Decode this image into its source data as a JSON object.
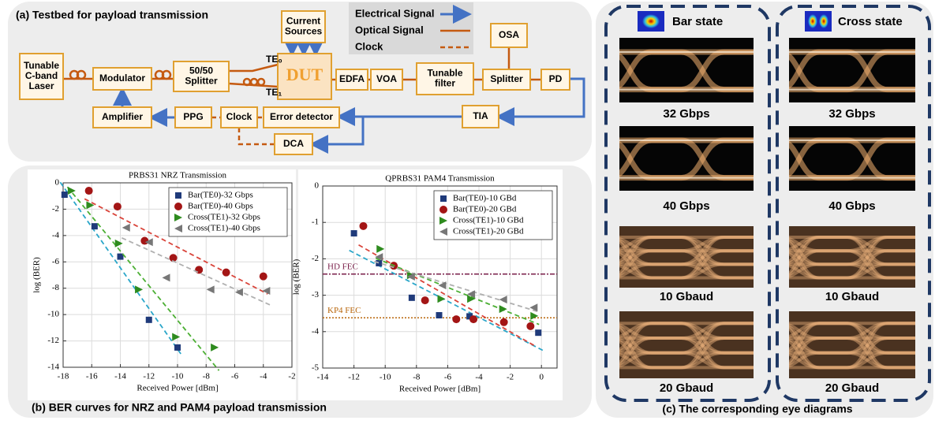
{
  "panel_a": {
    "title": "(a) Testbed for payload transmission",
    "legend": [
      "Electrical Signal",
      "Optical Signal",
      "Clock"
    ],
    "ports": [
      "TE₀",
      "TE₁"
    ],
    "nodes": [
      {
        "label": [
          "Tunable",
          "C-band",
          "Laser"
        ]
      },
      {
        "label": [
          "Modulator"
        ]
      },
      {
        "label": [
          "50/50",
          "Splitter"
        ]
      },
      {
        "label": [
          "Current",
          "Sources"
        ]
      },
      {
        "label": [
          "DUT"
        ]
      },
      {
        "label": [
          "EDFA"
        ]
      },
      {
        "label": [
          "VOA"
        ]
      },
      {
        "label": [
          "Tunable",
          "filter"
        ]
      },
      {
        "label": [
          "Splitter"
        ]
      },
      {
        "label": [
          "OSA"
        ]
      },
      {
        "label": [
          "PD"
        ]
      },
      {
        "label": [
          "TIA"
        ]
      },
      {
        "label": [
          "Error detector"
        ]
      },
      {
        "label": [
          "Clock"
        ]
      },
      {
        "label": [
          "PPG"
        ]
      },
      {
        "label": [
          "Amplifier"
        ]
      },
      {
        "label": [
          "DCA"
        ]
      }
    ]
  },
  "panel_b": {
    "caption": "(b) BER curves for NRZ and PAM4 payload transmission"
  },
  "chart_data": [
    {
      "type": "scatter",
      "title": "PRBS31 NRZ Transmission",
      "x_label": "Received Power [dBm]",
      "y_label": "log (BER)",
      "xlim": [
        -18,
        -2
      ],
      "ylim": [
        -14,
        0
      ],
      "xticks": [
        -18,
        -16,
        -14,
        -12,
        -10,
        -8,
        -6,
        -4,
        -2
      ],
      "yticks": [
        -14,
        -12,
        -10,
        -8,
        -6,
        -4,
        -2,
        0
      ],
      "grid": true,
      "legend": "upper right",
      "trendlines": true,
      "series": [
        {
          "name": "Bar(TE0)-32 Gbps",
          "color": "#1f3a7a",
          "fit_color": "#2aa6c9",
          "marker": "square",
          "x": [
            -17.9,
            -15.8,
            -14,
            -12,
            -10
          ],
          "values": [
            -0.9,
            -3.3,
            -5.6,
            -10.4,
            -12.5
          ]
        },
        {
          "name": "Bar(TE0)-40 Gbps",
          "color": "#a31515",
          "fit_color": "#d9443a",
          "marker": "circle",
          "x": [
            -16.2,
            -14.2,
            -12.3,
            -10.3,
            -8.5,
            -6.6,
            -4
          ],
          "values": [
            -0.6,
            -1.8,
            -4.4,
            -5.7,
            -6.6,
            -6.8,
            -7.1
          ]
        },
        {
          "name": "Cross(TE1)-32 Gbps",
          "color": "#2e8b1e",
          "fit_color": "#4caf34",
          "marker": "triangle-right",
          "x": [
            -17.4,
            -16.1,
            -14.1,
            -12.7,
            -10.1,
            -7.4
          ],
          "values": [
            -0.6,
            -1.7,
            -4.6,
            -8.1,
            -11.7,
            -12.5
          ]
        },
        {
          "name": "Cross(TE1)-40 Gbps",
          "color": "#777777",
          "fit_color": "#b0b0b0",
          "marker": "triangle-left",
          "x": [
            -13.6,
            -12,
            -10.8,
            -7.7,
            -5.7,
            -3.8
          ],
          "values": [
            -3.4,
            -4.5,
            -7.2,
            -8.1,
            -8.3,
            -8.2
          ]
        }
      ]
    },
    {
      "type": "scatter",
      "title": "QPRBS31 PAM4 Transmission",
      "x_label": "Received Power [dBm]",
      "y_label": "log (BER)",
      "xlim": [
        -14,
        1
      ],
      "ylim": [
        -5,
        0
      ],
      "xticks": [
        -14,
        -12,
        -10,
        -8,
        -6,
        -4,
        -2,
        0
      ],
      "yticks": [
        -5,
        -4,
        -3,
        -2,
        -1,
        0
      ],
      "grid": true,
      "legend": "upper right",
      "trendlines": true,
      "reference_lines": [
        {
          "label": "HD FEC",
          "value": -2.42,
          "color": "#7a1f4a"
        },
        {
          "label": "KP4 FEC",
          "value": -3.62,
          "color": "#b8650a"
        }
      ],
      "series": [
        {
          "name": "Bar(TE0)-10 GBd",
          "color": "#1f3a7a",
          "fit_color": "#2aa6c9",
          "marker": "square",
          "x": [
            -12,
            -10.4,
            -8.3,
            -6.55,
            -4.6,
            -0.2
          ],
          "values": [
            -1.3,
            -2.12,
            -3.07,
            -3.55,
            -3.58,
            -4.03
          ]
        },
        {
          "name": "Bar(TE0)-20 GBd",
          "color": "#a31515",
          "fit_color": "#d9443a",
          "marker": "circle",
          "x": [
            -11.4,
            -9.45,
            -7.45,
            -5.45,
            -4.35,
            -2.4,
            -0.7
          ],
          "values": [
            -1.1,
            -2.19,
            -3.14,
            -3.66,
            -3.66,
            -3.74,
            -3.85
          ]
        },
        {
          "name": "Cross(TE1)-10 GBd",
          "color": "#2e8b1e",
          "fit_color": "#4caf34",
          "marker": "triangle-right",
          "x": [
            -10.3,
            -8.35,
            -6.4,
            -4.5,
            -2.45,
            -0.45
          ],
          "values": [
            -1.73,
            -2.45,
            -3.1,
            -3.1,
            -3.38,
            -3.57
          ]
        },
        {
          "name": "Cross(TE1)-20 GBd",
          "color": "#777777",
          "fit_color": "#b0b0b0",
          "marker": "triangle-left",
          "x": [
            -10.4,
            -8.35,
            -6.35,
            -4.5,
            -2.45,
            -0.5
          ],
          "values": [
            -1.95,
            -2.49,
            -2.73,
            -2.97,
            -3.12,
            -3.34
          ]
        }
      ]
    }
  ],
  "panel_c": {
    "caption": "(c) The corresponding eye diagrams",
    "columns": [
      {
        "title": "Bar state",
        "labels": [
          "32 Gbps",
          "40 Gbps",
          "10 Gbaud",
          "20 Gbaud"
        ]
      },
      {
        "title": "Cross state",
        "labels": [
          "32 Gbps",
          "40 Gbps",
          "10 Gbaud",
          "20 Gbaud"
        ]
      }
    ]
  }
}
